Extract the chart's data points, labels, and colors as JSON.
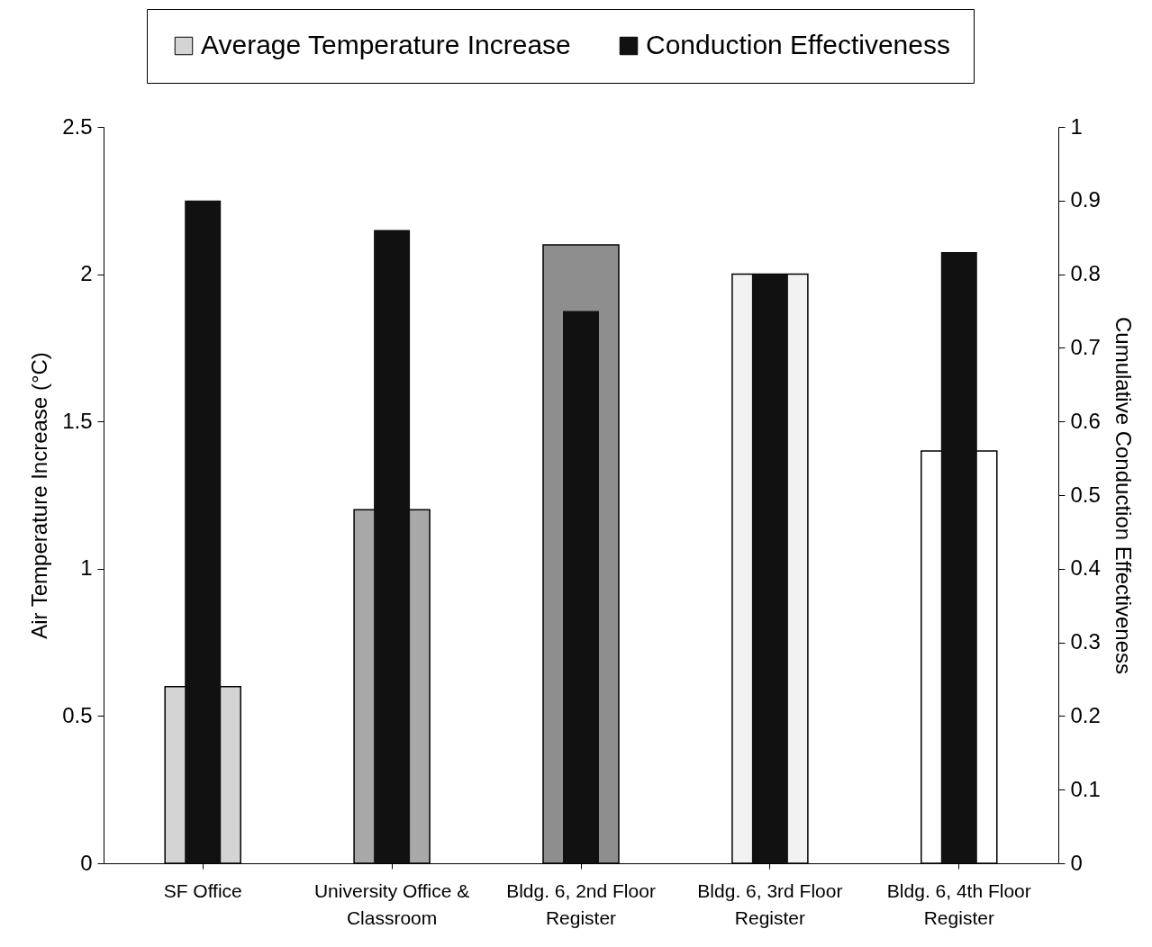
{
  "chart_data": {
    "type": "bar",
    "categories": [
      "SF Office",
      "University Office & Classroom",
      "Bldg. 6, 2nd Floor Register",
      "Bldg. 6, 3rd Floor Register",
      "Bldg. 6, 4th Floor Register"
    ],
    "ylabel": "Air Temperature Increase (°C)",
    "y2label": "Cumulative Conduction Effectiveness",
    "ylim": [
      0,
      2.5
    ],
    "yticks": [
      0,
      0.5,
      1,
      1.5,
      2,
      2.5
    ],
    "y2lim": [
      0,
      1
    ],
    "y2ticks": [
      0,
      0.1,
      0.2,
      0.3,
      0.4,
      0.5,
      0.6,
      0.7,
      0.8,
      0.9,
      1
    ],
    "grid": false,
    "legend": "top",
    "series": [
      {
        "name": "Average Temperature Increase",
        "color": "#d4d4d4",
        "colors": [
          "#d4d4d4",
          "#a8a8a8",
          "#8e8e8e",
          "#f2f2f2",
          "#ffffff"
        ],
        "values": [
          0.6,
          1.2,
          2.1,
          2.0,
          1.4
        ]
      },
      {
        "name": "Conduction Effectiveness",
        "color": "#111111",
        "axis": "y2",
        "values": [
          0.9,
          0.86,
          0.75,
          0.8,
          0.83
        ]
      }
    ]
  }
}
